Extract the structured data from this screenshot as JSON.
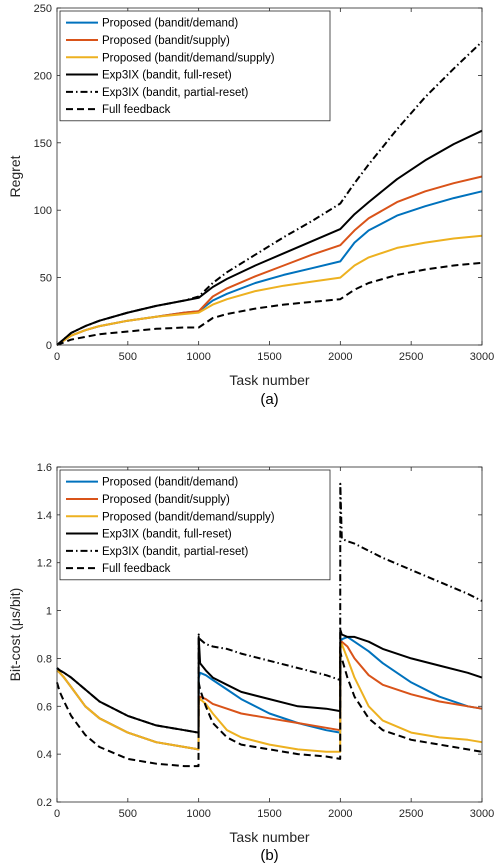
{
  "chart_data": [
    {
      "type": "line",
      "caption": "(a)",
      "xlabel": "Task number",
      "ylabel": "Regret",
      "xlim": [
        0,
        3000
      ],
      "ylim": [
        0,
        250
      ],
      "xticks": [
        0,
        500,
        1000,
        1500,
        2000,
        2500,
        3000
      ],
      "yticks": [
        0,
        50,
        100,
        150,
        200,
        250
      ],
      "grid": false,
      "legend_position": "top-left",
      "series": [
        {
          "name": "Proposed (bandit/demand)",
          "color": "#0072BD",
          "dash": "solid",
          "x": [
            0,
            100,
            200,
            300,
            500,
            700,
            900,
            1000,
            1100,
            1200,
            1400,
            1600,
            1800,
            2000,
            2100,
            2200,
            2400,
            2600,
            2800,
            3000
          ],
          "y": [
            0,
            7,
            11,
            14,
            18,
            21,
            24,
            25,
            33,
            38,
            46,
            52,
            57,
            62,
            76,
            85,
            96,
            103,
            109,
            114
          ]
        },
        {
          "name": "Proposed (bandit/supply)",
          "color": "#D95319",
          "dash": "solid",
          "x": [
            0,
            100,
            200,
            300,
            500,
            700,
            900,
            1000,
            1100,
            1200,
            1400,
            1600,
            1800,
            2000,
            2100,
            2200,
            2400,
            2600,
            2800,
            3000
          ],
          "y": [
            0,
            7,
            11,
            14,
            18,
            21,
            24,
            25,
            36,
            42,
            51,
            59,
            67,
            74,
            85,
            94,
            106,
            114,
            120,
            125
          ]
        },
        {
          "name": "Proposed (bandit/demand/supply)",
          "color": "#EDB120",
          "dash": "solid",
          "x": [
            0,
            100,
            200,
            300,
            500,
            700,
            900,
            1000,
            1100,
            1200,
            1400,
            1600,
            1800,
            2000,
            2100,
            2200,
            2400,
            2600,
            2800,
            3000
          ],
          "y": [
            0,
            7,
            11,
            14,
            18,
            21,
            23,
            24,
            30,
            34,
            40,
            44,
            47,
            50,
            59,
            65,
            72,
            76,
            79,
            81
          ]
        },
        {
          "name": "Exp3IX (bandit, full-reset)",
          "color": "#000000",
          "dash": "solid",
          "x": [
            0,
            100,
            200,
            300,
            500,
            700,
            900,
            1000,
            1100,
            1200,
            1400,
            1600,
            1800,
            2000,
            2100,
            2200,
            2400,
            2600,
            2800,
            3000
          ],
          "y": [
            0,
            9,
            14,
            18,
            24,
            29,
            33,
            35,
            43,
            49,
            59,
            68,
            77,
            86,
            97,
            106,
            123,
            137,
            149,
            159
          ]
        },
        {
          "name": "Exp3IX (bandit, partial-reset)",
          "color": "#000000",
          "dash": "dashdot",
          "x": [
            0,
            100,
            200,
            300,
            500,
            700,
            900,
            1000,
            1100,
            1200,
            1400,
            1600,
            1800,
            2000,
            2100,
            2200,
            2400,
            2600,
            2800,
            3000
          ],
          "y": [
            0,
            9,
            14,
            18,
            24,
            29,
            33,
            36,
            46,
            54,
            67,
            80,
            92,
            105,
            120,
            134,
            160,
            184,
            205,
            225
          ]
        },
        {
          "name": "Full feedback",
          "color": "#000000",
          "dash": "dashed",
          "x": [
            0,
            100,
            200,
            300,
            500,
            700,
            900,
            1000,
            1100,
            1200,
            1400,
            1600,
            1800,
            2000,
            2100,
            2200,
            2400,
            2600,
            2800,
            3000
          ],
          "y": [
            0,
            4,
            6,
            8,
            10,
            12,
            13,
            13,
            20,
            23,
            27,
            30,
            32,
            34,
            41,
            46,
            52,
            56,
            59,
            61
          ]
        }
      ]
    },
    {
      "type": "line",
      "caption": "(b)",
      "xlabel": "Task number",
      "ylabel": "Bit-cost (μs/bit)",
      "xlim": [
        0,
        3000
      ],
      "ylim": [
        0.2,
        1.6
      ],
      "xticks": [
        0,
        500,
        1000,
        1500,
        2000,
        2500,
        3000
      ],
      "yticks": [
        0.2,
        0.4,
        0.6,
        0.8,
        1,
        1.2,
        1.4,
        1.6
      ],
      "grid": false,
      "legend_position": "top-left",
      "series": [
        {
          "name": "Proposed (bandit/demand)",
          "color": "#0072BD",
          "dash": "solid",
          "x": [
            0,
            20,
            50,
            100,
            200,
            300,
            500,
            700,
            900,
            999,
            1000,
            1010,
            1050,
            1100,
            1200,
            1300,
            1500,
            1700,
            1900,
            1999,
            2000,
            2010,
            2050,
            2100,
            2200,
            2300,
            2500,
            2700,
            2900,
            3000
          ],
          "y": [
            0.76,
            0.74,
            0.72,
            0.68,
            0.6,
            0.55,
            0.49,
            0.45,
            0.43,
            0.42,
            0.72,
            0.74,
            0.73,
            0.71,
            0.67,
            0.63,
            0.57,
            0.53,
            0.5,
            0.49,
            0.86,
            0.88,
            0.89,
            0.87,
            0.83,
            0.78,
            0.7,
            0.64,
            0.6,
            0.59
          ]
        },
        {
          "name": "Proposed (bandit/supply)",
          "color": "#D95319",
          "dash": "solid",
          "x": [
            0,
            20,
            50,
            100,
            200,
            300,
            500,
            700,
            900,
            999,
            1000,
            1010,
            1050,
            1100,
            1200,
            1300,
            1500,
            1700,
            1900,
            1999,
            2000,
            2010,
            2050,
            2100,
            2200,
            2300,
            2500,
            2700,
            2900,
            3000
          ],
          "y": [
            0.75,
            0.74,
            0.72,
            0.68,
            0.6,
            0.55,
            0.49,
            0.45,
            0.43,
            0.42,
            0.62,
            0.64,
            0.63,
            0.61,
            0.59,
            0.57,
            0.55,
            0.53,
            0.51,
            0.5,
            0.86,
            0.87,
            0.85,
            0.8,
            0.73,
            0.69,
            0.65,
            0.62,
            0.6,
            0.59
          ]
        },
        {
          "name": "Proposed (bandit/demand/supply)",
          "color": "#EDB120",
          "dash": "solid",
          "x": [
            0,
            20,
            50,
            100,
            200,
            300,
            500,
            700,
            900,
            999,
            1000,
            1010,
            1050,
            1100,
            1200,
            1300,
            1500,
            1700,
            1900,
            1999,
            2000,
            2010,
            2050,
            2100,
            2200,
            2300,
            2500,
            2700,
            2900,
            3000
          ],
          "y": [
            0.75,
            0.74,
            0.72,
            0.68,
            0.6,
            0.55,
            0.49,
            0.45,
            0.43,
            0.42,
            0.62,
            0.63,
            0.61,
            0.57,
            0.5,
            0.47,
            0.44,
            0.42,
            0.41,
            0.41,
            0.84,
            0.86,
            0.8,
            0.72,
            0.6,
            0.54,
            0.49,
            0.47,
            0.46,
            0.45
          ]
        },
        {
          "name": "Exp3IX (bandit, full-reset)",
          "color": "#000000",
          "dash": "solid",
          "x": [
            0,
            20,
            50,
            100,
            200,
            300,
            500,
            700,
            900,
            999,
            1000,
            1010,
            1050,
            1100,
            1200,
            1300,
            1500,
            1700,
            1900,
            1999,
            2000,
            2010,
            2050,
            2100,
            2200,
            2300,
            2500,
            2700,
            2900,
            3000
          ],
          "y": [
            0.76,
            0.75,
            0.74,
            0.72,
            0.67,
            0.62,
            0.56,
            0.52,
            0.5,
            0.49,
            0.89,
            0.78,
            0.75,
            0.72,
            0.69,
            0.66,
            0.63,
            0.6,
            0.59,
            0.58,
            0.92,
            0.9,
            0.89,
            0.89,
            0.87,
            0.84,
            0.8,
            0.77,
            0.74,
            0.72
          ]
        },
        {
          "name": "Exp3IX (bandit, partial-reset)",
          "color": "#000000",
          "dash": "dashdot",
          "x": [
            0,
            20,
            50,
            100,
            200,
            300,
            500,
            700,
            900,
            999,
            1000,
            1010,
            1050,
            1100,
            1200,
            1300,
            1500,
            1700,
            1900,
            1999,
            2000,
            2010,
            2050,
            2100,
            2200,
            2300,
            2500,
            2700,
            2900,
            3000
          ],
          "y": [
            0.76,
            0.75,
            0.74,
            0.72,
            0.67,
            0.62,
            0.56,
            0.52,
            0.5,
            0.49,
            0.9,
            0.88,
            0.86,
            0.85,
            0.84,
            0.82,
            0.79,
            0.76,
            0.73,
            0.71,
            1.53,
            1.3,
            1.29,
            1.28,
            1.25,
            1.22,
            1.17,
            1.12,
            1.07,
            1.04
          ]
        },
        {
          "name": "Full feedback",
          "color": "#000000",
          "dash": "dashed",
          "x": [
            0,
            20,
            50,
            100,
            200,
            300,
            500,
            700,
            900,
            999,
            1000,
            1010,
            1050,
            1100,
            1200,
            1300,
            1500,
            1700,
            1900,
            1999,
            2000,
            2010,
            2050,
            2100,
            2200,
            2300,
            2500,
            2700,
            2900,
            3000
          ],
          "y": [
            0.7,
            0.66,
            0.62,
            0.56,
            0.48,
            0.43,
            0.38,
            0.36,
            0.35,
            0.35,
            0.7,
            0.67,
            0.6,
            0.53,
            0.47,
            0.44,
            0.42,
            0.4,
            0.39,
            0.38,
            0.83,
            0.8,
            0.72,
            0.64,
            0.55,
            0.5,
            0.46,
            0.44,
            0.42,
            0.41
          ]
        }
      ]
    }
  ]
}
